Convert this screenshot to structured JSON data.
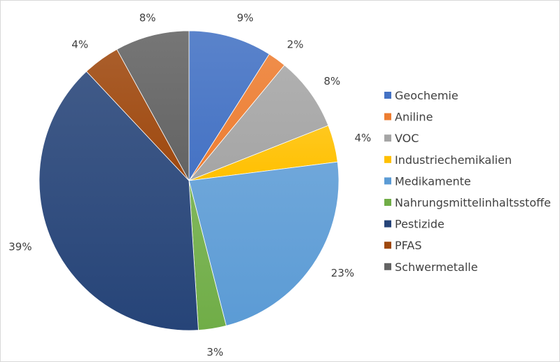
{
  "chart_data": {
    "type": "pie",
    "title": "",
    "start_angle_deg": 0,
    "direction": "clockwise",
    "legend_position": "right",
    "slices": [
      {
        "label": "Geochemie",
        "value": 9,
        "display": "9%",
        "color": "#4472C4"
      },
      {
        "label": "Aniline",
        "value": 2,
        "display": "2%",
        "color": "#ED7D31"
      },
      {
        "label": "VOC",
        "value": 8,
        "display": "8%",
        "color": "#A5A5A5"
      },
      {
        "label": "Industriechemikalien",
        "value": 4,
        "display": "4%",
        "color": "#FFC000"
      },
      {
        "label": "Medikamente",
        "value": 23,
        "display": "23%",
        "color": "#5B9BD5"
      },
      {
        "label": "Nahrungsmittelinhaltsstoffe",
        "value": 3,
        "display": "3%",
        "color": "#70AD47"
      },
      {
        "label": "Pestizide",
        "value": 39,
        "display": "39%",
        "color": "#264478"
      },
      {
        "label": "PFAS",
        "value": 4,
        "display": "4%",
        "color": "#9E480E"
      },
      {
        "label": "Schwermetalle",
        "value": 8,
        "display": "8%",
        "color": "#636363"
      }
    ]
  }
}
